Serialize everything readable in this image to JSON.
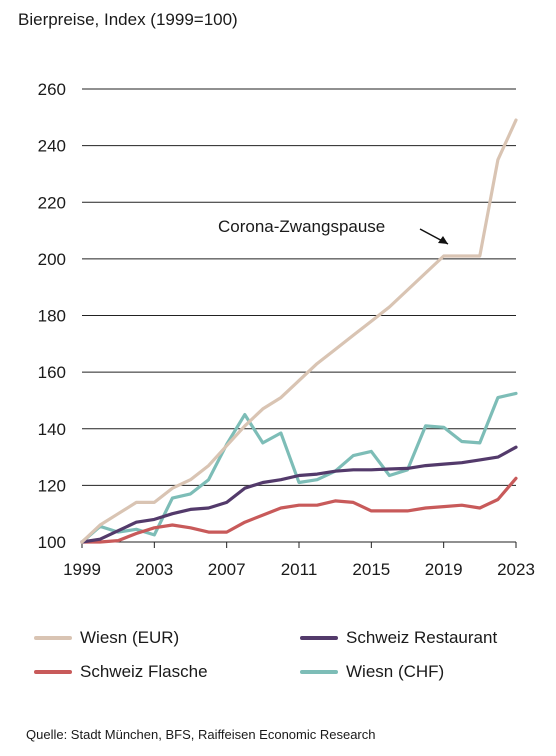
{
  "title": "Bierpreise, Index (1999=100)",
  "source": "Quelle: Stadt München, BFS, Raiffeisen Economic Research",
  "colors": {
    "wiesn_eur": "#d9c4b3",
    "schweiz_restaurant": "#533a6b",
    "schweiz_flasche": "#c85a5a",
    "wiesn_chf": "#7dbdb7",
    "grid": "#222222"
  },
  "chart_data": {
    "type": "line",
    "title": "Bierpreise, Index (1999=100)",
    "xlabel": "",
    "ylabel": "",
    "xlim": [
      1999,
      2023
    ],
    "ylim": [
      100,
      260
    ],
    "x_ticks": [
      "1999",
      "2003",
      "2007",
      "2011",
      "2015",
      "2019",
      "2023"
    ],
    "y_ticks": [
      "100",
      "120",
      "140",
      "160",
      "180",
      "200",
      "220",
      "240",
      "260"
    ],
    "grid": "horizontal",
    "legend_position": "bottom",
    "x": [
      1999,
      2000,
      2001,
      2002,
      2003,
      2004,
      2005,
      2006,
      2007,
      2008,
      2009,
      2010,
      2011,
      2012,
      2013,
      2014,
      2015,
      2016,
      2017,
      2018,
      2019,
      2020,
      2021,
      2022,
      2023
    ],
    "series": [
      {
        "name": "Wiesn (EUR)",
        "color_key": "wiesn_eur",
        "values": [
          100,
          106,
          110,
          114,
          114,
          119,
          122,
          127,
          134,
          141,
          147,
          151,
          157,
          163,
          168,
          173,
          178,
          183,
          189,
          195,
          201,
          201,
          201,
          235,
          249
        ]
      },
      {
        "name": "Schweiz Restaurant",
        "color_key": "schweiz_restaurant",
        "values": [
          100,
          101,
          104,
          107,
          108,
          110,
          111.5,
          112,
          114,
          119,
          121,
          122,
          123.5,
          124,
          125,
          125.5,
          125.5,
          125.8,
          126,
          127,
          127.5,
          128,
          129,
          130,
          133.5
        ]
      },
      {
        "name": "Schweiz Flasche",
        "color_key": "schweiz_flasche",
        "values": [
          100,
          100,
          100.5,
          103,
          105,
          106,
          105,
          103.5,
          103.5,
          107,
          109.5,
          112,
          113,
          113,
          114.5,
          114,
          111,
          111,
          111,
          112,
          112.5,
          113,
          112,
          115,
          122.5
        ]
      },
      {
        "name": "Wiesn (CHF)",
        "color_key": "wiesn_chf",
        "values": [
          100,
          105.5,
          103.5,
          104.5,
          102.5,
          115.5,
          117,
          122,
          134.5,
          145,
          135,
          138.5,
          121,
          122,
          125,
          130.5,
          132,
          123.5,
          125.5,
          141,
          140.5,
          135.5,
          135,
          151,
          152.5
        ]
      }
    ],
    "annotations": [
      {
        "text": "Corona-Zwangspause",
        "target_x": 2020,
        "target_y": 201
      }
    ]
  },
  "legend": [
    {
      "label": "Wiesn (EUR)",
      "color_key": "wiesn_eur"
    },
    {
      "label": "Schweiz Restaurant",
      "color_key": "schweiz_restaurant"
    },
    {
      "label": "Schweiz Flasche",
      "color_key": "schweiz_flasche"
    },
    {
      "label": "Wiesn (CHF)",
      "color_key": "wiesn_chf"
    }
  ]
}
